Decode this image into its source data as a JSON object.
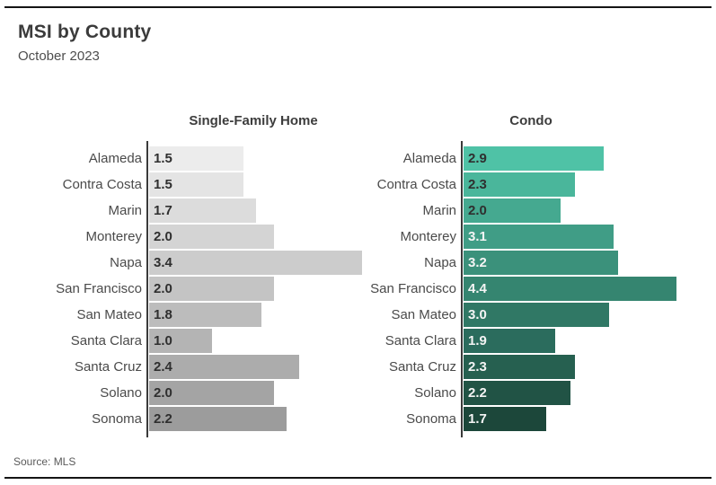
{
  "page": {
    "title": "MSI by County",
    "subtitle": "October 2023",
    "source": "Source: MLS"
  },
  "chart_data": {
    "type": "bar",
    "orientation": "horizontal",
    "title": "MSI by County",
    "subtitle": "October 2023",
    "source": "Source: MLS",
    "grid": false,
    "legend": false,
    "value_label_position": "inside-left",
    "value_format": "one-decimal",
    "categories": [
      "Alameda",
      "Contra Costa",
      "Marin",
      "Monterey",
      "Napa",
      "San Francisco",
      "San Mateo",
      "Santa Clara",
      "Santa Cruz",
      "Solano",
      "Sonoma"
    ],
    "series": [
      {
        "name": "Single-Family Home",
        "values": [
          1.5,
          1.5,
          1.7,
          2.0,
          3.4,
          2.0,
          1.8,
          1.0,
          2.4,
          2.0,
          2.2
        ],
        "x_max": 3.4,
        "bar_colors": [
          "#ececec",
          "#e4e4e4",
          "#dcdcdc",
          "#d4d4d4",
          "#cccccc",
          "#c4c4c4",
          "#bcbcbc",
          "#b4b4b4",
          "#acacac",
          "#a4a4a4",
          "#9c9c9c"
        ],
        "value_label_colors": [
          "#2f2f2f",
          "#2f2f2f",
          "#2f2f2f",
          "#2f2f2f",
          "#2f2f2f",
          "#2f2f2f",
          "#2f2f2f",
          "#2f2f2f",
          "#2f2f2f",
          "#2f2f2f",
          "#2f2f2f"
        ]
      },
      {
        "name": "Condo",
        "values": [
          2.9,
          2.3,
          2.0,
          3.1,
          3.2,
          4.4,
          3.0,
          1.9,
          2.3,
          2.2,
          1.7
        ],
        "x_max": 4.4,
        "bar_colors": [
          "#4fc2a6",
          "#4ab69b",
          "#45a990",
          "#409d86",
          "#3b917b",
          "#358570",
          "#307865",
          "#2b6c5d",
          "#266050",
          "#215345",
          "#1c473a"
        ],
        "value_label_colors": [
          "#2f2f2f",
          "#2f2f2f",
          "#2f2f2f",
          "#f4f4f4",
          "#f4f4f4",
          "#f4f4f4",
          "#f4f4f4",
          "#f4f4f4",
          "#f4f4f4",
          "#f4f4f4",
          "#f4f4f4"
        ]
      }
    ]
  }
}
